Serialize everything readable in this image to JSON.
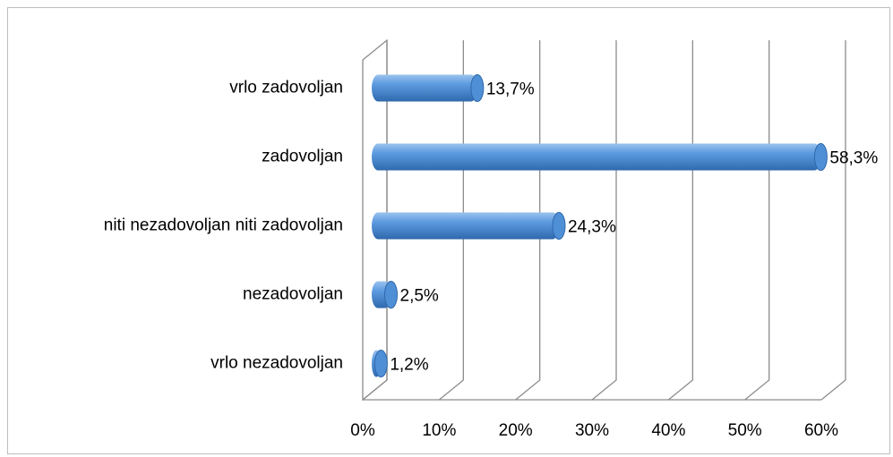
{
  "chart_data": {
    "type": "bar",
    "orientation": "horizontal",
    "style": "3d-cylinder",
    "categories": [
      "vrlo zadovoljan",
      "zadovoljan",
      "niti nezadovoljan niti zadovoljan",
      "nezadovoljan",
      "vrlo nezadovoljan"
    ],
    "values": [
      13.7,
      58.3,
      24.3,
      2.5,
      1.2
    ],
    "value_labels": [
      "13,7%",
      "58,3%",
      "24,3%",
      "2,5%",
      "1,2%"
    ],
    "color": "#4f8fd6",
    "xlim": [
      0,
      60
    ],
    "xticks": [
      {
        "value": 0,
        "label": "0%"
      },
      {
        "value": 10,
        "label": "10%"
      },
      {
        "value": 20,
        "label": "20%"
      },
      {
        "value": 30,
        "label": "30%"
      },
      {
        "value": 40,
        "label": "40%"
      },
      {
        "value": 50,
        "label": "50%"
      },
      {
        "value": 60,
        "label": "60%"
      }
    ],
    "grid": true
  }
}
